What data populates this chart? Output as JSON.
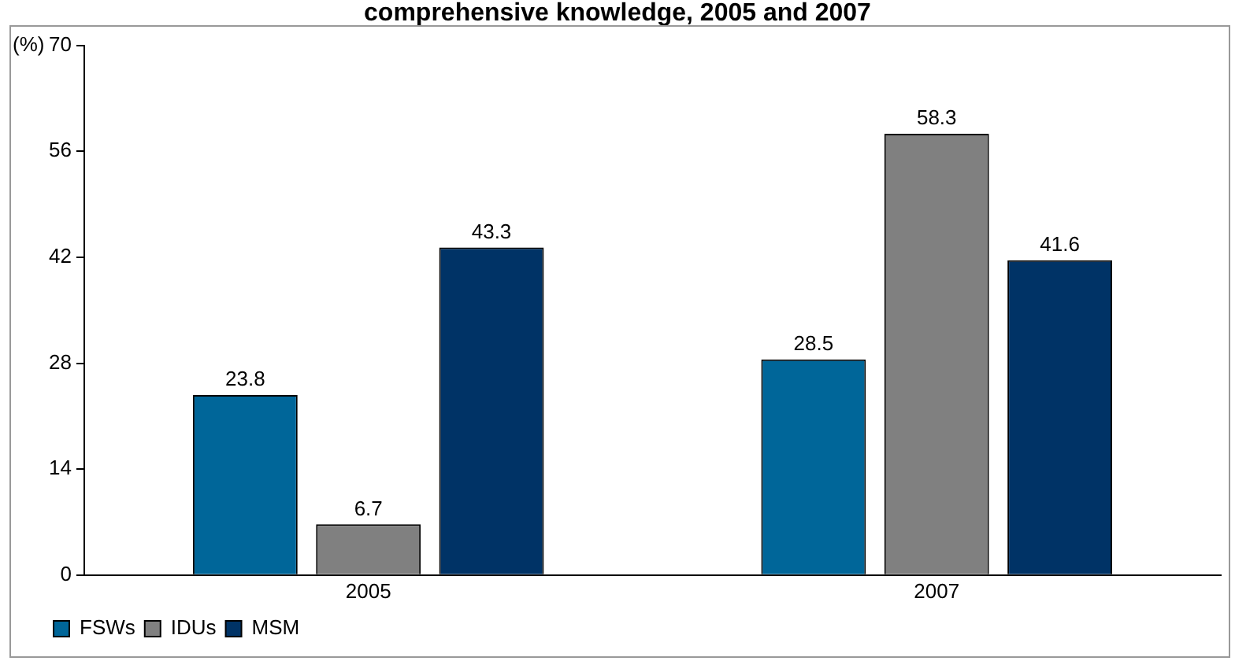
{
  "chart_data": {
    "type": "bar",
    "title": "comprehensive knowledge, 2005 and 2007",
    "ylabel": "(%)",
    "categories": [
      "2005",
      "2007"
    ],
    "series": [
      {
        "name": "FSWs",
        "color": "#006699",
        "values": [
          23.8,
          28.5
        ]
      },
      {
        "name": "IDUs",
        "color": "#808080",
        "values": [
          6.7,
          58.3
        ]
      },
      {
        "name": "MSM",
        "color": "#003366",
        "values": [
          43.3,
          41.6
        ]
      }
    ],
    "ylim": [
      0,
      70
    ],
    "yticks": [
      0,
      14,
      28,
      42,
      56,
      70
    ],
    "grid": false,
    "legend": "bottom left",
    "data_labels": true
  }
}
